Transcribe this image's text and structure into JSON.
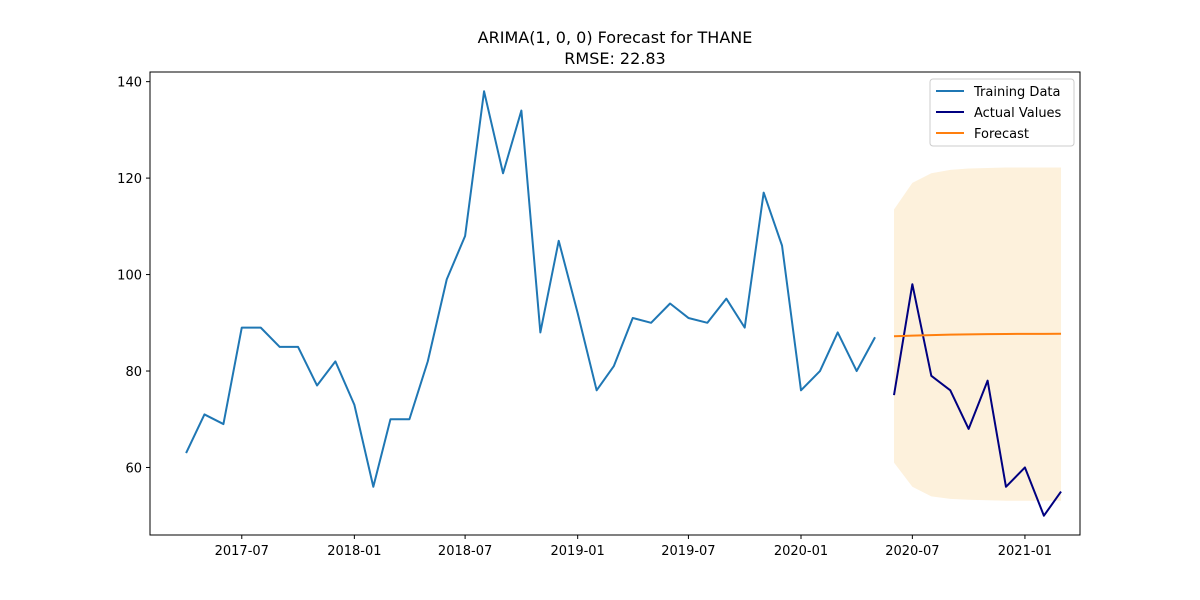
{
  "chart_data": {
    "type": "line",
    "title": "ARIMA(1, 0, 0) Forecast for THANE",
    "subtitle": "RMSE: 22.83",
    "xlabel": "",
    "ylabel": "",
    "x_range": [
      "2017-02-01",
      "2021-04-01"
    ],
    "ylim": [
      46,
      142
    ],
    "y_ticks": [
      60,
      80,
      100,
      120,
      140
    ],
    "x_ticks": [
      {
        "date": "2017-07-01",
        "label": "2017-07"
      },
      {
        "date": "2018-01-01",
        "label": "2018-01"
      },
      {
        "date": "2018-07-01",
        "label": "2018-07"
      },
      {
        "date": "2019-01-01",
        "label": "2019-01"
      },
      {
        "date": "2019-07-01",
        "label": "2019-07"
      },
      {
        "date": "2020-01-01",
        "label": "2020-01"
      },
      {
        "date": "2020-07-01",
        "label": "2020-07"
      },
      {
        "date": "2021-01-01",
        "label": "2021-01"
      }
    ],
    "grid": false,
    "legend_position": "top-right",
    "series": [
      {
        "name": "Training Data",
        "color": "#1f77b4",
        "x": [
          "2017-04-01",
          "2017-05-01",
          "2017-06-01",
          "2017-07-01",
          "2017-08-01",
          "2017-09-01",
          "2017-10-01",
          "2017-11-01",
          "2017-12-01",
          "2018-01-01",
          "2018-02-01",
          "2018-03-01",
          "2018-04-01",
          "2018-05-01",
          "2018-06-01",
          "2018-07-01",
          "2018-08-01",
          "2018-09-01",
          "2018-10-01",
          "2018-11-01",
          "2018-12-01",
          "2019-01-01",
          "2019-02-01",
          "2019-03-01",
          "2019-04-01",
          "2019-05-01",
          "2019-06-01",
          "2019-07-01",
          "2019-08-01",
          "2019-09-01",
          "2019-10-01",
          "2019-11-01",
          "2019-12-01",
          "2020-01-01",
          "2020-02-01",
          "2020-03-01",
          "2020-04-01",
          "2020-05-01"
        ],
        "values": [
          63,
          71,
          69,
          89,
          89,
          85,
          85,
          77,
          82,
          73,
          56,
          70,
          70,
          82,
          99,
          108,
          138,
          121,
          134,
          88,
          107,
          92,
          76,
          81,
          91,
          90,
          94,
          91,
          90,
          95,
          89,
          117,
          106,
          76,
          80,
          88,
          80,
          87
        ]
      },
      {
        "name": "Actual Values",
        "color": "#000080",
        "x": [
          "2020-06-01",
          "2020-07-01",
          "2020-08-01",
          "2020-09-01",
          "2020-10-01",
          "2020-11-01",
          "2020-12-01",
          "2021-01-01",
          "2021-02-01",
          "2021-03-01"
        ],
        "values": [
          75,
          98,
          79,
          76,
          68,
          78,
          56,
          60,
          50,
          55
        ]
      },
      {
        "name": "Forecast",
        "color": "#ff7f0e",
        "x": [
          "2020-06-01",
          "2020-07-01",
          "2020-08-01",
          "2020-09-01",
          "2020-10-01",
          "2020-11-01",
          "2020-12-01",
          "2021-01-01",
          "2021-02-01",
          "2021-03-01"
        ],
        "values": [
          87.2,
          87.35,
          87.45,
          87.55,
          87.6,
          87.65,
          87.68,
          87.7,
          87.71,
          87.72
        ]
      }
    ],
    "confidence_band": {
      "color": "#fdf1dc",
      "x": [
        "2020-06-01",
        "2020-07-01",
        "2020-08-01",
        "2020-09-01",
        "2020-10-01",
        "2020-11-01",
        "2020-12-01",
        "2021-01-01",
        "2021-02-01",
        "2021-03-01"
      ],
      "lower": [
        61,
        56,
        54,
        53.5,
        53.3,
        53.2,
        53.1,
        53.1,
        53.1,
        53.1
      ],
      "upper": [
        113.5,
        119,
        121,
        121.7,
        122,
        122.1,
        122.2,
        122.2,
        122.2,
        122.2
      ]
    }
  }
}
